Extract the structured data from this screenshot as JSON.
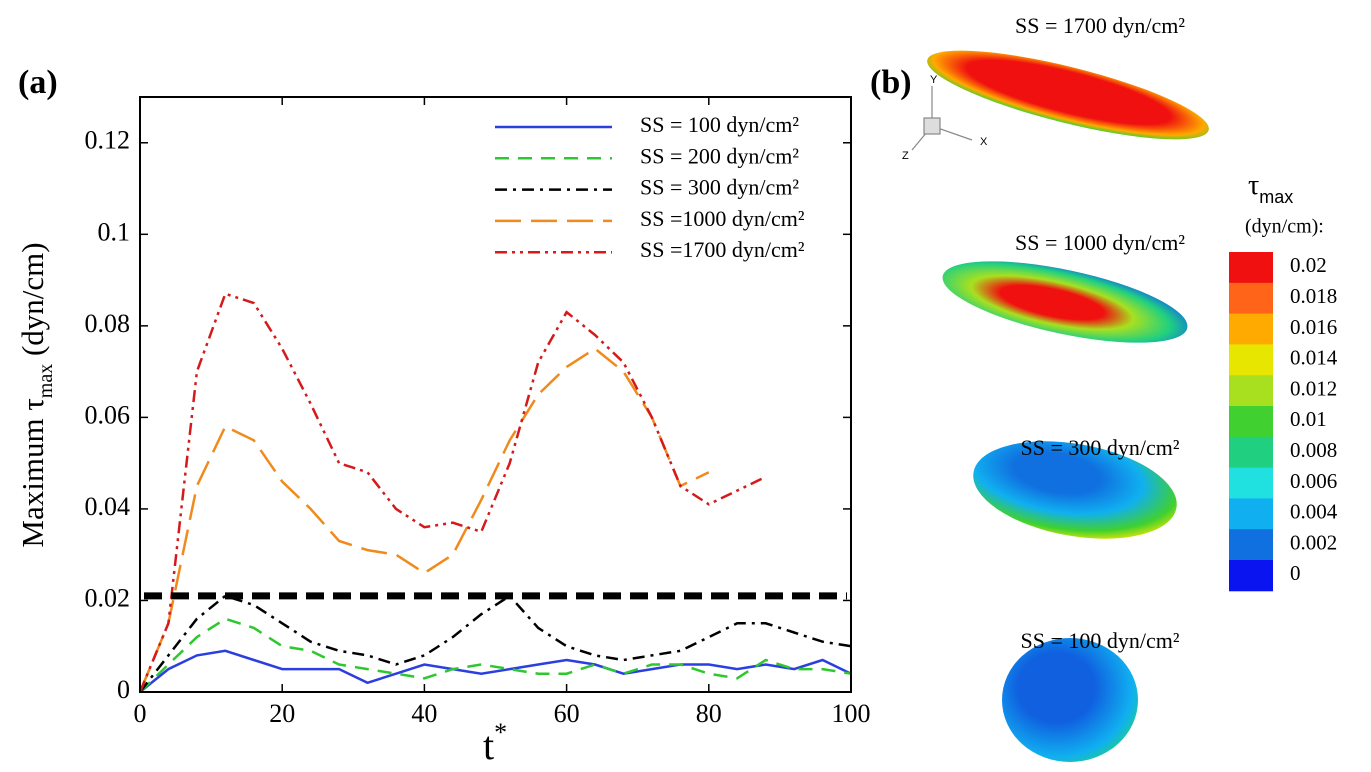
{
  "chart_data": {
    "type": "line",
    "panel_label": "(a)",
    "ylabel": {
      "main": "Maximum τ",
      "sub": "max",
      "unit": " (dyn/cm)"
    },
    "xlabel": {
      "main": "t",
      "sup": "*"
    },
    "x": [
      0,
      4,
      8,
      12,
      16,
      20,
      24,
      28,
      32,
      36,
      40,
      44,
      48,
      52,
      56,
      60,
      64,
      68,
      72,
      76,
      80,
      84,
      88,
      92,
      96,
      100
    ],
    "series": [
      {
        "name": "SS = 100 dyn/cm²",
        "color": "#2b3fe0",
        "dash": "solid",
        "values": [
          0,
          0.005,
          0.008,
          0.009,
          0.007,
          0.005,
          0.005,
          0.005,
          0.002,
          0.004,
          0.006,
          0.005,
          0.004,
          0.005,
          0.006,
          0.007,
          0.006,
          0.004,
          0.005,
          0.006,
          0.006,
          0.005,
          0.006,
          0.005,
          0.007,
          0.004
        ]
      },
      {
        "name": "SS = 200 dyn/cm²",
        "color": "#2ec82e",
        "dash": "dashed",
        "values": [
          0,
          0.006,
          0.012,
          0.016,
          0.014,
          0.01,
          0.009,
          0.006,
          0.005,
          0.004,
          0.003,
          0.005,
          0.006,
          0.005,
          0.004,
          0.004,
          0.006,
          0.004,
          0.006,
          0.006,
          0.004,
          0.003,
          0.007,
          0.005,
          0.005,
          0.004
        ]
      },
      {
        "name": "SS = 300 dyn/cm²",
        "color": "#000000",
        "dash": "dashdot",
        "values": [
          0,
          0.008,
          0.016,
          0.021,
          0.019,
          0.015,
          0.011,
          0.009,
          0.008,
          0.006,
          0.008,
          0.012,
          0.017,
          0.021,
          0.014,
          0.01,
          0.008,
          0.007,
          0.008,
          0.009,
          0.012,
          0.015,
          0.015,
          0.013,
          0.011,
          0.01
        ]
      },
      {
        "name": "SS =1000 dyn/cm²",
        "color": "#f08a1c",
        "dash": "longdash",
        "values": [
          0,
          0.015,
          0.045,
          0.058,
          0.055,
          0.046,
          0.04,
          0.033,
          0.031,
          0.03,
          0.026,
          0.03,
          0.042,
          0.055,
          0.065,
          0.071,
          0.075,
          0.07,
          0.06,
          0.045,
          0.048,
          null,
          null,
          null,
          null,
          null
        ]
      },
      {
        "name": "SS =1700 dyn/cm²",
        "color": "#d41a1a",
        "dash": "dashdotdot",
        "values": [
          0,
          0.015,
          0.07,
          0.087,
          0.085,
          0.075,
          0.063,
          0.05,
          0.048,
          0.04,
          0.036,
          0.037,
          0.035,
          0.05,
          0.072,
          0.083,
          0.078,
          0.072,
          0.06,
          0.045,
          0.041,
          0.044,
          0.047,
          null,
          null,
          null
        ]
      }
    ],
    "threshold": 0.021,
    "xlim": [
      0,
      100
    ],
    "xticks": [
      0,
      20,
      40,
      60,
      80,
      100
    ],
    "ylim": [
      0,
      0.13
    ],
    "yticks": [
      0,
      0.02,
      0.04,
      0.06,
      0.08,
      0.1,
      0.12
    ],
    "legend": "upper right"
  },
  "panel_b": {
    "panel_label": "(b)",
    "axes_labels": [
      "Y",
      "X",
      "Z"
    ],
    "cells": [
      "SS = 1700 dyn/cm²",
      "SS = 1000 dyn/cm²",
      "SS = 300 dyn/cm²",
      "SS = 100 dyn/cm²"
    ],
    "colorbar": {
      "title_main": "τ",
      "title_sub": "max",
      "unit": "(dyn/cm):",
      "ticks": [
        0.02,
        0.018,
        0.016,
        0.014,
        0.012,
        0.01,
        0.008,
        0.006,
        0.004,
        0.002,
        0
      ],
      "colors": [
        "#f01010",
        "#ff6418",
        "#ffaa00",
        "#e6e600",
        "#a8e020",
        "#40d030",
        "#20d080",
        "#20e0e0",
        "#10b0f0",
        "#1070e0",
        "#0a14f0"
      ]
    }
  }
}
